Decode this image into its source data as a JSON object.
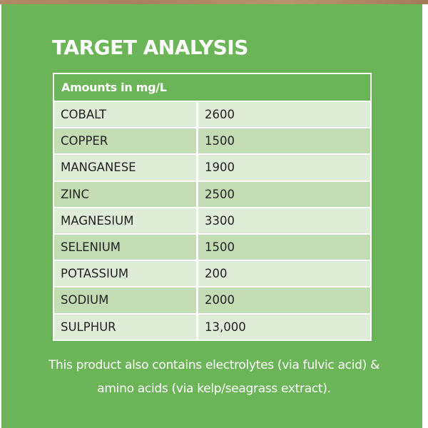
{
  "title": "TARGET ANALYSIS",
  "table": {
    "header": "Amounts in mg/L",
    "rows": [
      {
        "name": "COBALT",
        "value": "2600"
      },
      {
        "name": "COPPER",
        "value": "1500"
      },
      {
        "name": "MANGANESE",
        "value": "1900"
      },
      {
        "name": "ZINC",
        "value": "2500"
      },
      {
        "name": "MAGNESIUM",
        "value": "3300"
      },
      {
        "name": "SELENIUM",
        "value": "1500"
      },
      {
        "name": "POTASSIUM",
        "value": "200"
      },
      {
        "name": "SODIUM",
        "value": "2000"
      },
      {
        "name": "SULPHUR",
        "value": "13,000"
      }
    ]
  },
  "note": "This product also contains electrolytes (via fulvic acid) & amino acids (via kelp/seagrass extract).",
  "colors": {
    "panel": "#6bb457",
    "row_light": "#dfecd7",
    "row_dark": "#c3dcb4"
  }
}
